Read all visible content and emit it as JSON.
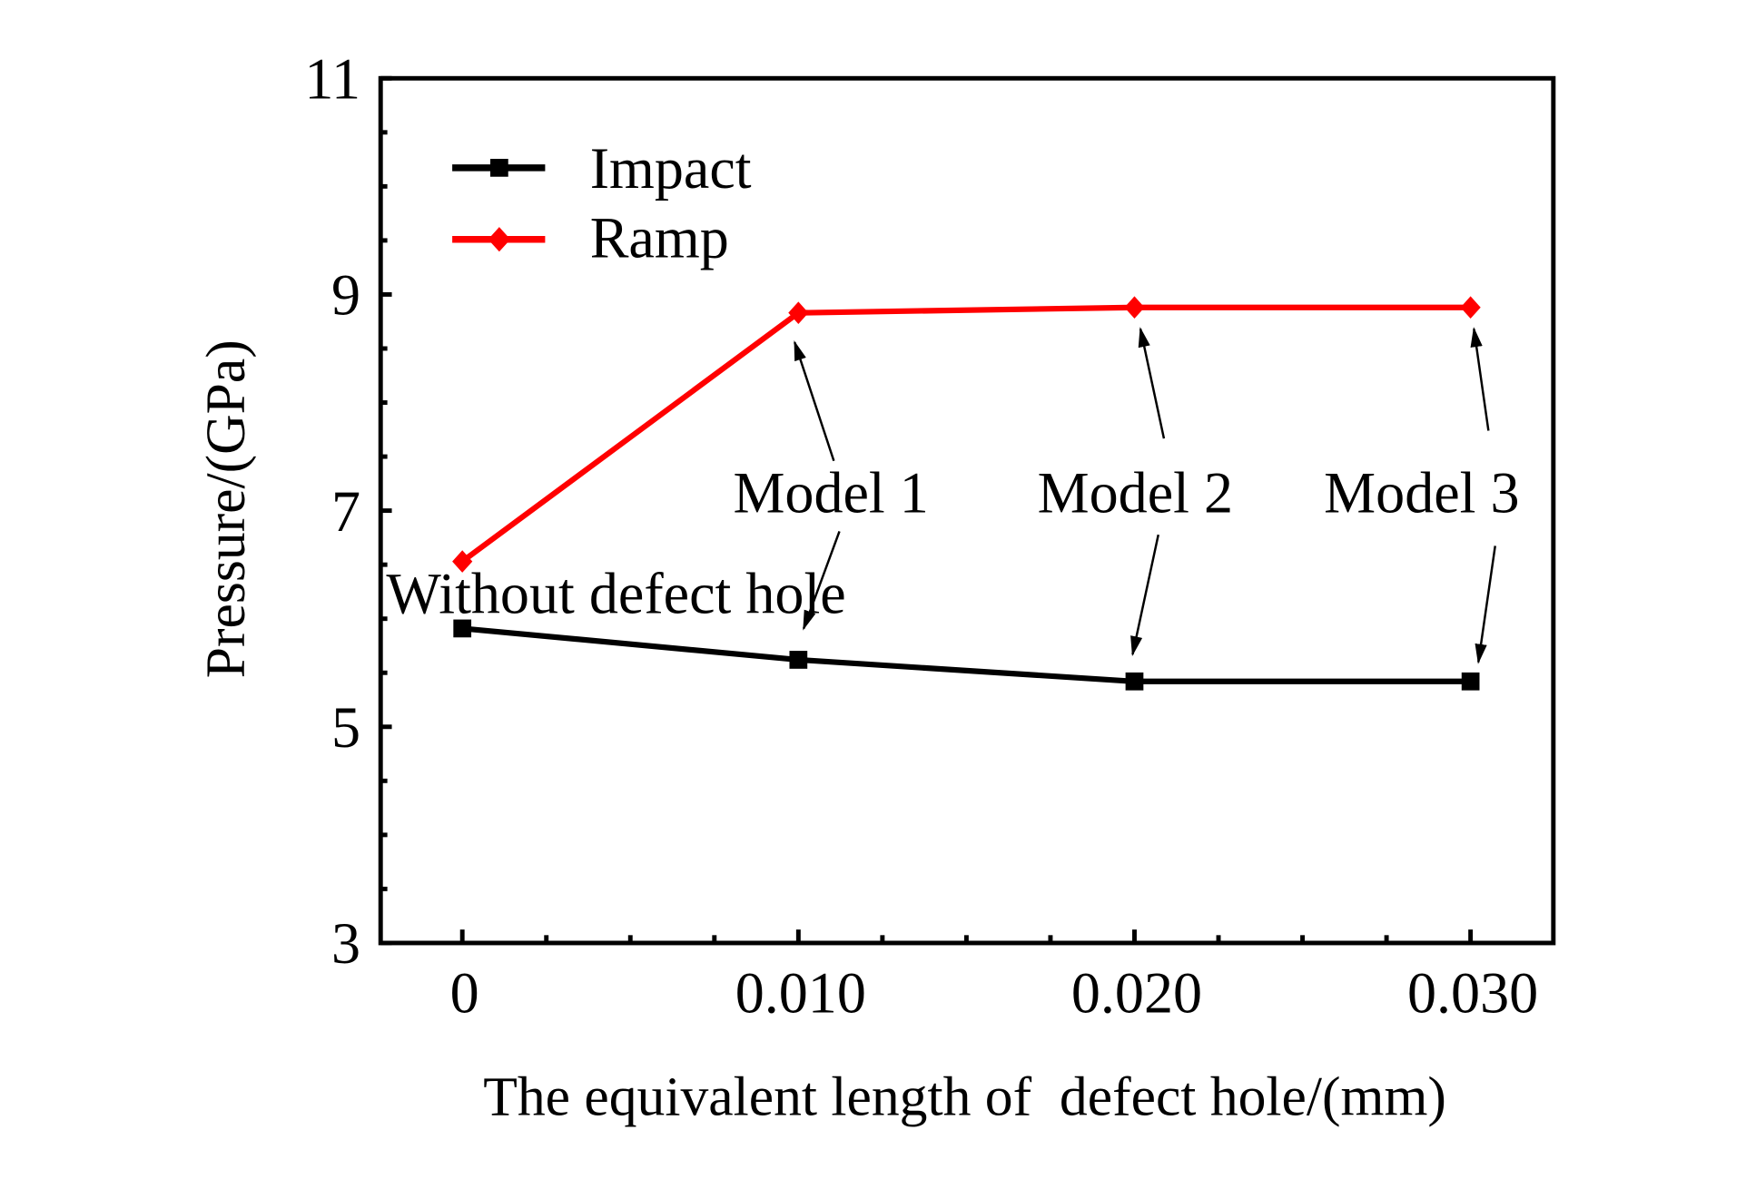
{
  "chart_data": {
    "type": "line",
    "title": "",
    "xlabel": "The equivalent length of  defect hole/(mm)",
    "ylabel": "Pressure/(GPa)",
    "xlim": [
      -0.0025,
      0.0325
    ],
    "ylim": [
      3,
      11
    ],
    "x_ticks": [
      0,
      0.01,
      0.02,
      0.03
    ],
    "x_tick_labels": [
      "0",
      "0.010",
      "0.020",
      "0.030"
    ],
    "y_ticks": [
      3,
      5,
      7,
      9,
      11
    ],
    "y_tick_labels": [
      "3",
      "5",
      "7",
      "9",
      "11"
    ],
    "grid": false,
    "legend_position": "top-left",
    "x": [
      0,
      0.01,
      0.02,
      0.03
    ],
    "series": [
      {
        "name": "Impact",
        "color": "#000000",
        "marker": "square",
        "values": [
          5.91,
          5.62,
          5.42,
          5.42
        ]
      },
      {
        "name": "Ramp",
        "color": "#ff0000",
        "marker": "diamond",
        "values": [
          6.53,
          8.83,
          8.88,
          8.88
        ]
      }
    ],
    "annotations": [
      {
        "text": "Without defect hole",
        "x": 0,
        "y": 6.1
      },
      {
        "text": "Model 1",
        "x": 0.01,
        "y": 7.1
      },
      {
        "text": "Model 2",
        "x": 0.02,
        "y": 7.1
      },
      {
        "text": "Model 3",
        "x": 0.03,
        "y": 7.1
      }
    ]
  }
}
